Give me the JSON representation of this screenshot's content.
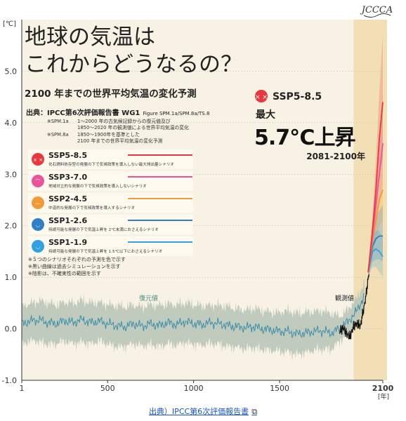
{
  "header": {
    "logo": "JCCCA",
    "title_line1": "地球の気温は",
    "title_line2": "これからどうなるの？",
    "subtitle": "2100 年までの世界平均気温の変化予測",
    "source_label": "出典：IPCC第6次評価報告書 WG1",
    "source_figures": "Figure SPM.1a/SPM.8a/TS.8",
    "notes": [
      {
        "key": "※SPM.1a",
        "lines": [
          "1～2000 年の古気候記録からの復元値及び",
          "1850～2020 年の観測値による世界平均気温の変化"
        ]
      },
      {
        "key": "※SPM.8a",
        "lines": [
          "1850～1900年を基準とした",
          "2100 年までの世界平均気温の変化予測"
        ]
      }
    ]
  },
  "highlight": {
    "scenario": "SSP5-8.5",
    "max_label": "最大",
    "value": "5.7℃上昇",
    "period": "2081-2100年"
  },
  "scenarios": [
    {
      "name": "SSP5-8.5",
      "desc": "化石燃料依存型の発展の下で気候政策を導入しない最大排出量シナリオ",
      "color": "#e8383d",
      "icon": "dizzy-face-icon"
    },
    {
      "name": "SSP3-7.0",
      "desc": "地域対立的な発展の下で気候政策を導入しないシナリオ",
      "color": "#e8559a",
      "icon": "sad-face-icon"
    },
    {
      "name": "SSP2-4.5",
      "desc": "中道的な発展の下で気候政策を導入するシナリオ",
      "color": "#f29a38",
      "icon": "neutral-face-icon"
    },
    {
      "name": "SSP1-2.6",
      "desc": "持続可能な発展の下で気温上昇を 2℃未満におさえるシナリオ",
      "color": "#2f7fc8",
      "icon": "smile-face-icon"
    },
    {
      "name": "SSP1-1.9",
      "desc": "持続可能な発展の下で気温上昇を 1.5℃以下におさえるシナリオ",
      "color": "#33a0e0",
      "icon": "happy-face-icon"
    }
  ],
  "footnotes": [
    "※５つのシナリオそれぞれの予測を色で示す",
    "※黒い曲線は過去シミュレーションを示す",
    "※陰影は、不確実性の範囲を示す"
  ],
  "annotations": {
    "reconstructed": "復元値",
    "observed": "観測値"
  },
  "source_link": "出典）IPCC第6次評価報告書",
  "colors": {
    "background": "#f7f2e4",
    "band": "#f3dfb6",
    "reconstruction": "#3d8fa8",
    "reconstruction_fill": "#b9c7b9",
    "observed": "#111111",
    "grid": "#cfc8b6"
  },
  "chart_data": {
    "type": "line",
    "ylabel": "[℃]",
    "xlabel": "[年]",
    "xlim": [
      1,
      2100
    ],
    "ylim": [
      -1.0,
      6.0
    ],
    "x_ticks": [
      1,
      500,
      1000,
      1500,
      2100
    ],
    "x_tick_labels": [
      "1",
      "500",
      "1000",
      "1500",
      "2100"
    ],
    "y_ticks": [
      -1.0,
      0.0,
      1.0,
      2.0,
      3.0,
      4.0,
      5.0
    ],
    "y_tick_labels": [
      "-1.0",
      "0.0",
      "1.0",
      "2.0",
      "3.0",
      "4.0",
      "5.0"
    ],
    "grid": true,
    "highlight_band": [
      1930,
      2100
    ],
    "reconstruction": {
      "x": [
        1,
        50,
        100,
        150,
        200,
        250,
        300,
        350,
        400,
        450,
        500,
        550,
        600,
        650,
        700,
        750,
        800,
        850,
        900,
        950,
        1000,
        1050,
        1100,
        1150,
        1200,
        1250,
        1300,
        1350,
        1400,
        1450,
        1500,
        1550,
        1600,
        1650,
        1700,
        1750,
        1800,
        1850,
        1900,
        1950,
        2000
      ],
      "y": [
        0.1,
        0.15,
        0.18,
        0.12,
        0.1,
        0.16,
        0.12,
        0.18,
        0.12,
        0.15,
        0.1,
        0.06,
        0.04,
        0.1,
        0.05,
        0.1,
        0.06,
        0.12,
        0.08,
        0.14,
        0.1,
        0.08,
        0.12,
        0.1,
        0.06,
        0.04,
        0.02,
        0.04,
        0.0,
        -0.02,
        -0.05,
        -0.05,
        -0.1,
        -0.08,
        -0.05,
        -0.04,
        -0.08,
        0.0,
        0.15,
        0.35,
        0.7
      ],
      "lower": [
        -0.25,
        -0.2,
        -0.2,
        -0.25,
        -0.25,
        -0.2,
        -0.25,
        -0.2,
        -0.25,
        -0.2,
        -0.25,
        -0.3,
        -0.3,
        -0.25,
        -0.3,
        -0.25,
        -0.3,
        -0.25,
        -0.28,
        -0.22,
        -0.25,
        -0.28,
        -0.25,
        -0.25,
        -0.3,
        -0.32,
        -0.35,
        -0.32,
        -0.35,
        -0.38,
        -0.4,
        -0.4,
        -0.45,
        -0.42,
        -0.38,
        -0.35,
        -0.35,
        -0.2,
        -0.05,
        0.15,
        0.5
      ],
      "upper": [
        0.4,
        0.45,
        0.5,
        0.45,
        0.42,
        0.48,
        0.45,
        0.5,
        0.45,
        0.48,
        0.42,
        0.4,
        0.38,
        0.42,
        0.38,
        0.42,
        0.4,
        0.45,
        0.42,
        0.45,
        0.42,
        0.4,
        0.42,
        0.4,
        0.38,
        0.35,
        0.32,
        0.35,
        0.3,
        0.28,
        0.28,
        0.3,
        0.25,
        0.28,
        0.3,
        0.3,
        0.25,
        0.2,
        0.35,
        0.55,
        0.9
      ]
    },
    "observed": {
      "x": [
        1850,
        1870,
        1890,
        1910,
        1930,
        1950,
        1960,
        1970,
        1980,
        1990,
        2000,
        2010,
        2020
      ],
      "y": [
        -0.05,
        0.02,
        -0.1,
        -0.15,
        0.05,
        0.1,
        0.08,
        0.05,
        0.25,
        0.4,
        0.6,
        0.85,
        1.1
      ]
    },
    "series": [
      {
        "name": "SSP5-8.5",
        "x": [
          2015,
          2040,
          2060,
          2080,
          2100
        ],
        "values": [
          1.1,
          1.9,
          2.7,
          3.7,
          4.4
        ],
        "lower": [
          1.0,
          1.6,
          2.2,
          3.0,
          3.3
        ],
        "upper": [
          1.2,
          2.2,
          3.3,
          4.6,
          5.7
        ]
      },
      {
        "name": "SSP3-7.0",
        "x": [
          2015,
          2040,
          2060,
          2080,
          2100
        ],
        "values": [
          1.1,
          1.8,
          2.4,
          3.0,
          3.6
        ],
        "lower": [
          1.0,
          1.5,
          2.0,
          2.5,
          2.8
        ],
        "upper": [
          1.2,
          2.1,
          2.9,
          3.6,
          4.6
        ]
      },
      {
        "name": "SSP2-4.5",
        "x": [
          2015,
          2040,
          2060,
          2080,
          2100
        ],
        "values": [
          1.1,
          1.7,
          2.1,
          2.5,
          2.7
        ],
        "lower": [
          1.0,
          1.4,
          1.7,
          2.0,
          2.1
        ],
        "upper": [
          1.2,
          2.0,
          2.6,
          3.0,
          3.5
        ]
      },
      {
        "name": "SSP1-2.6",
        "x": [
          2015,
          2040,
          2060,
          2080,
          2100
        ],
        "values": [
          1.1,
          1.6,
          1.75,
          1.8,
          1.8
        ],
        "lower": [
          1.0,
          1.3,
          1.35,
          1.35,
          1.3
        ],
        "upper": [
          1.2,
          1.9,
          2.15,
          2.3,
          2.4
        ]
      },
      {
        "name": "SSP1-1.9",
        "x": [
          2015,
          2040,
          2060,
          2080,
          2100
        ],
        "values": [
          1.1,
          1.5,
          1.55,
          1.5,
          1.4
        ],
        "lower": [
          1.0,
          1.2,
          1.2,
          1.1,
          1.0
        ],
        "upper": [
          1.2,
          1.8,
          1.9,
          1.9,
          1.8
        ]
      }
    ]
  }
}
